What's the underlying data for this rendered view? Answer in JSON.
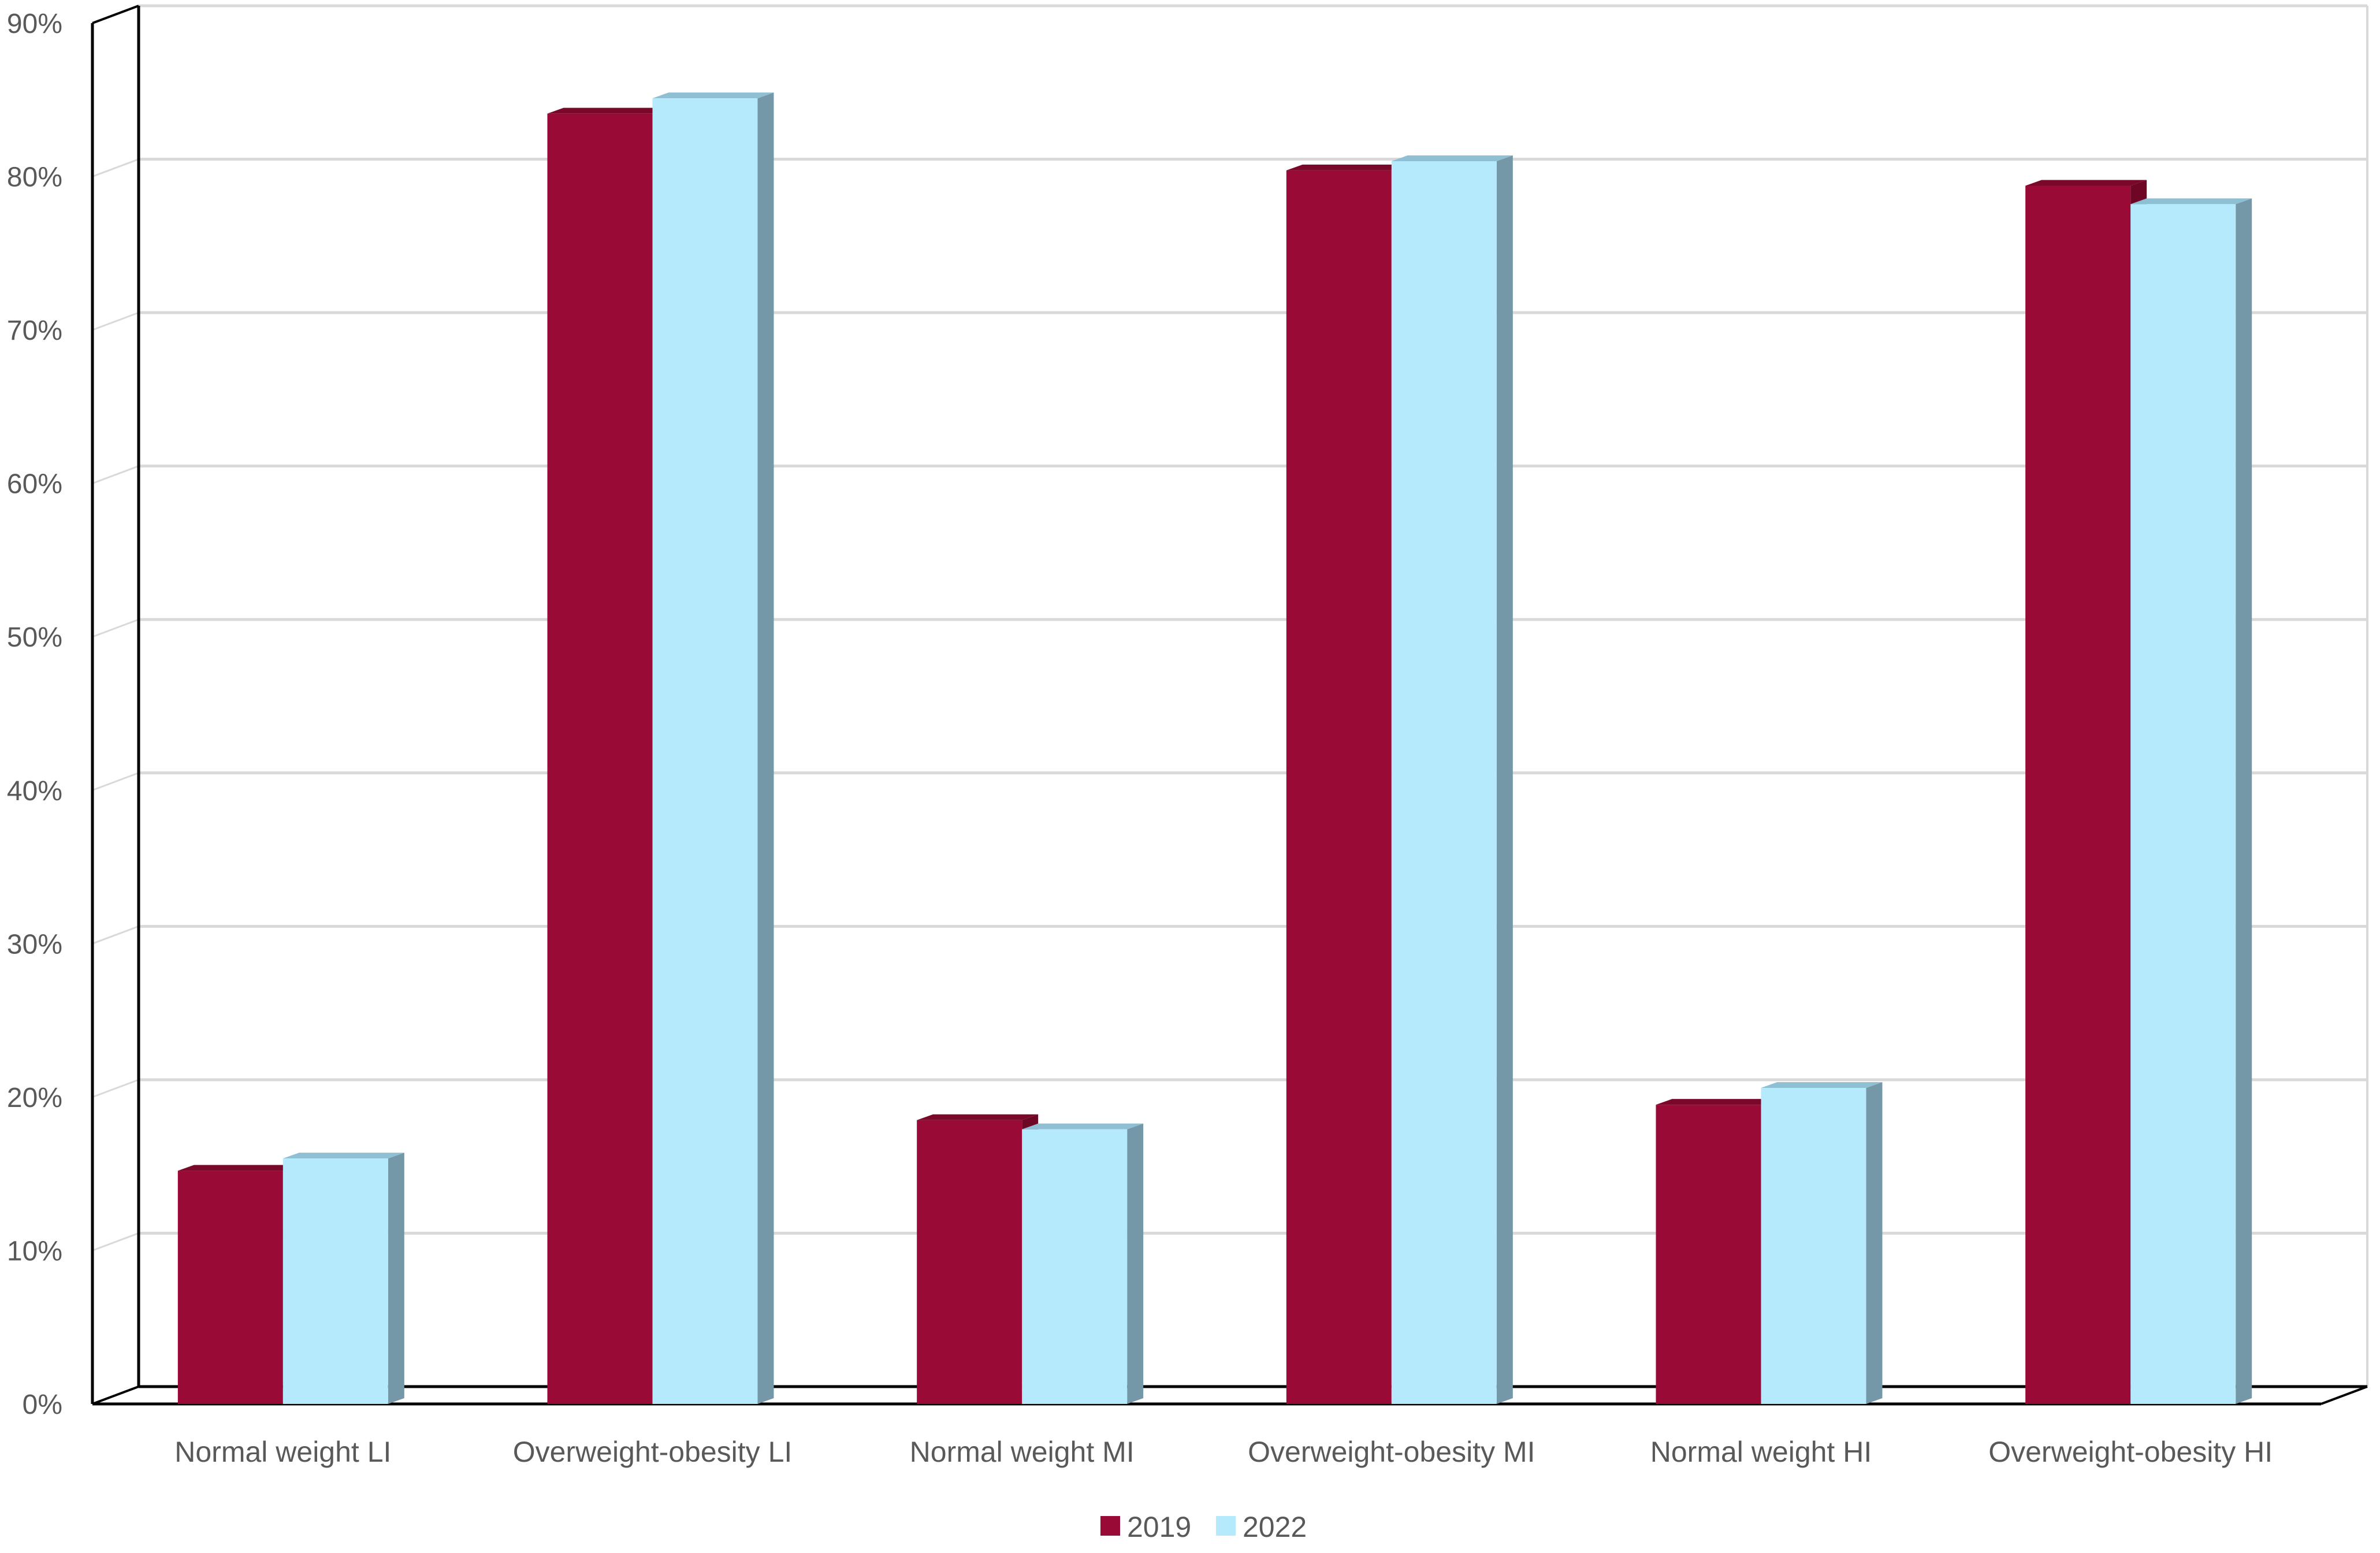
{
  "chart_data": {
    "type": "bar",
    "title": "",
    "xlabel": "",
    "ylabel": "",
    "categories": [
      "Normal weight LI",
      "Overweight-obesity LI",
      "Normal weight MI",
      "Overweight-obesity MI",
      "Normal weight HI",
      "Overweight-obesity HI"
    ],
    "series": [
      {
        "name": "2019",
        "values": [
          15.2,
          84.1,
          18.5,
          80.4,
          19.5,
          79.4
        ],
        "color": "#990A36",
        "side_color": "#6E0625",
        "top_color": "#7A0829"
      },
      {
        "name": "2022",
        "values": [
          16.0,
          85.1,
          17.9,
          81.0,
          20.6,
          78.2
        ],
        "color": "#B5E9FC",
        "side_color": "#7598A8",
        "top_color": "#8FBFD3"
      }
    ],
    "ylim": [
      0,
      90
    ],
    "yticks": [
      "0%",
      "10%",
      "20%",
      "30%",
      "40%",
      "50%",
      "60%",
      "70%",
      "80%",
      "90%"
    ],
    "ytick_values": [
      0,
      10,
      20,
      30,
      40,
      50,
      60,
      70,
      80,
      90
    ],
    "grid": true,
    "legend_position": "bottom-center",
    "bar_style": "3d"
  }
}
